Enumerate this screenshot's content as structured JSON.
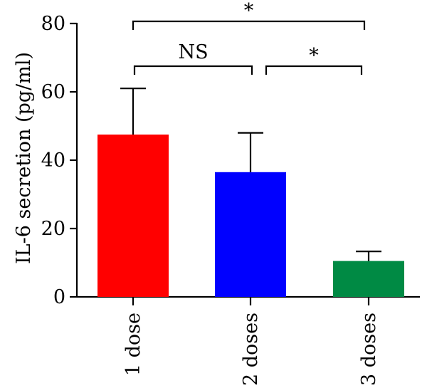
{
  "chart_data": {
    "type": "bar",
    "categories": [
      "1 dose",
      "2 doses",
      "3 doses"
    ],
    "values": [
      47.5,
      36.5,
      10.5
    ],
    "errors_upper": [
      13.5,
      11.5,
      2.8
    ],
    "colors": [
      "#ff0000",
      "#0000ff",
      "#008a44"
    ],
    "ylabel": "IL-6 secretion (pg/ml)",
    "xlabel": "",
    "ylim": [
      0,
      80
    ],
    "yticks": [
      0,
      20,
      40,
      60,
      80
    ],
    "grid": false,
    "significance": [
      {
        "from": "1 dose",
        "to": "3 doses",
        "label": "*"
      },
      {
        "from": "1 dose",
        "to": "2 doses",
        "label": "NS"
      },
      {
        "from": "2 doses",
        "to": "3 doses",
        "label": "*"
      }
    ]
  }
}
